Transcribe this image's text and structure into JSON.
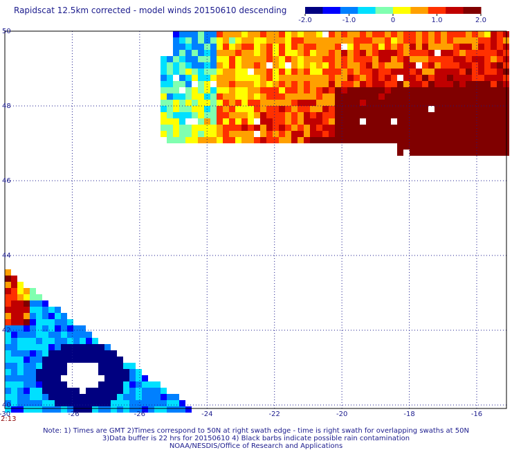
{
  "title": "Rapidscat 12.5km corrected - model winds 20150610 descending",
  "colorbar": {
    "ticks": [
      "-2.0",
      "-1.0",
      "0",
      "1.0",
      "2.0"
    ],
    "range": [
      -2.0,
      2.0
    ],
    "colors": [
      "#000080",
      "#0000ff",
      "#0080ff",
      "#00e0ff",
      "#80ffb0",
      "#ffff00",
      "#ffa000",
      "#ff3000",
      "#c00000",
      "#800000"
    ]
  },
  "map": {
    "lon_range": [
      -30,
      -15
    ],
    "lat_range": [
      40,
      50
    ],
    "x_ticks": [
      "-30",
      "-26",
      "-24",
      "-22",
      "-20",
      "-18",
      "-16"
    ],
    "x_tick_values": [
      -30,
      -26,
      -24,
      -22,
      -20,
      -18,
      -16
    ],
    "extra_x_labels": [
      {
        "text": "-26",
        "lon": -28
      }
    ],
    "y_ticks": [
      "40",
      "42",
      "44",
      "46",
      "48",
      "50"
    ],
    "y_tick_values": [
      40,
      42,
      44,
      46,
      48,
      50
    ],
    "grid": "dotted",
    "swath_time": "2:13"
  },
  "notes": {
    "line1": "Note: 1) Times are GMT 2)Times correspond to 50N at right swath edge - time is right swath for overlapping swaths at 50N",
    "line2": "3)Data buffer is 22 hrs for 20150610 4) Black barbs indicate possible rain contamination",
    "line3": "NOAA/NESDIS/Office of Research and Applications"
  }
}
